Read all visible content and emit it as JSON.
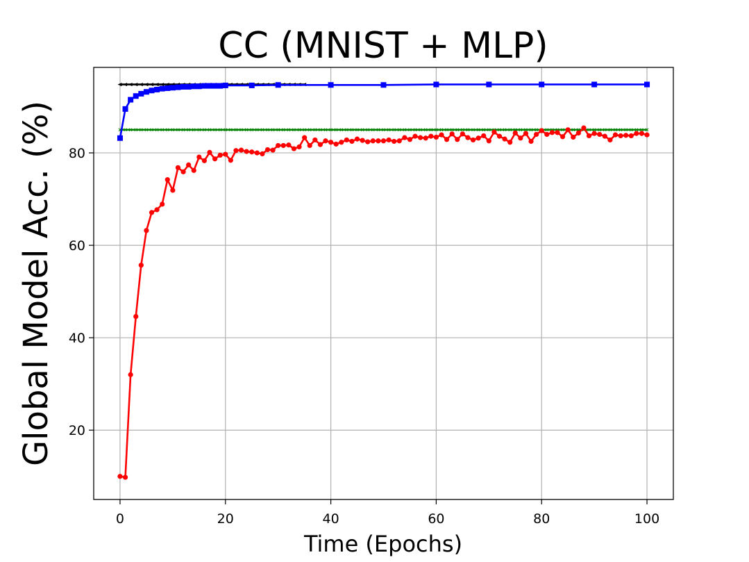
{
  "chart_data": {
    "type": "line",
    "title": "CC (MNIST + MLP)",
    "xlabel": "Time (Epochs)",
    "ylabel": "Global Model Acc. (%)",
    "xlim": [
      -5,
      105
    ],
    "ylim": [
      5,
      98.5
    ],
    "xticks": [
      0,
      20,
      40,
      60,
      80,
      100
    ],
    "yticks": [
      20,
      40,
      60,
      80
    ],
    "grid": true,
    "legend": null,
    "series": [
      {
        "color": "#000000",
        "marker": "triangle-left",
        "x": [
          0,
          1,
          2,
          3,
          4,
          5,
          6,
          7,
          8,
          9,
          10,
          11,
          12,
          13,
          14,
          15,
          16,
          17,
          18,
          19,
          20,
          21,
          22,
          23,
          24,
          25,
          26,
          27,
          28,
          29,
          30,
          31,
          32,
          33,
          34,
          35
        ],
        "values": [
          94.8,
          94.8,
          94.8,
          94.8,
          94.8,
          94.8,
          94.8,
          94.8,
          94.8,
          94.8,
          94.8,
          94.8,
          94.8,
          94.8,
          94.8,
          94.8,
          94.8,
          94.8,
          94.8,
          94.8,
          94.8,
          94.8,
          94.8,
          94.8,
          94.8,
          94.8,
          94.8,
          94.8,
          94.8,
          94.8,
          94.8,
          94.8,
          94.8,
          94.8,
          94.8,
          94.8
        ]
      },
      {
        "color": "#008000",
        "marker": "x",
        "x": [
          0,
          100
        ],
        "values": [
          85.0,
          85.0
        ]
      },
      {
        "color": "#0000ff",
        "marker": "square",
        "x": [
          0,
          1,
          2,
          3,
          4,
          5,
          6,
          7,
          8,
          9,
          10,
          11,
          12,
          13,
          14,
          15,
          16,
          17,
          18,
          19,
          20,
          25,
          30,
          40,
          50,
          60,
          70,
          80,
          90,
          100
        ],
        "values": [
          83.2,
          89.5,
          91.5,
          92.3,
          92.8,
          93.2,
          93.5,
          93.7,
          93.9,
          94.0,
          94.1,
          94.2,
          94.3,
          94.3,
          94.4,
          94.4,
          94.5,
          94.5,
          94.5,
          94.5,
          94.6,
          94.6,
          94.7,
          94.7,
          94.7,
          94.8,
          94.8,
          94.8,
          94.8,
          94.8
        ]
      },
      {
        "color": "#ff0000",
        "marker": "circle",
        "x": [
          0,
          1,
          2,
          3,
          4,
          5,
          6,
          7,
          8,
          9,
          10,
          11,
          12,
          13,
          14,
          15,
          16,
          17,
          18,
          19,
          20,
          21,
          22,
          23,
          24,
          25,
          26,
          27,
          28,
          29,
          30,
          31,
          32,
          33,
          34,
          35,
          36,
          37,
          38,
          39,
          40,
          41,
          42,
          43,
          44,
          45,
          46,
          47,
          48,
          49,
          50,
          51,
          52,
          53,
          54,
          55,
          56,
          57,
          58,
          59,
          60,
          61,
          62,
          63,
          64,
          65,
          66,
          67,
          68,
          69,
          70,
          71,
          72,
          73,
          74,
          75,
          76,
          77,
          78,
          79,
          80,
          81,
          82,
          83,
          84,
          85,
          86,
          87,
          88,
          89,
          90,
          91,
          92,
          93,
          94,
          95,
          96,
          97,
          98,
          99,
          100
        ],
        "values": [
          10.0,
          9.8,
          32.0,
          44.6,
          55.7,
          63.2,
          67.1,
          67.7,
          68.9,
          74.2,
          71.9,
          76.8,
          75.9,
          77.4,
          76.2,
          79.1,
          78.3,
          80.1,
          78.7,
          79.5,
          79.7,
          78.4,
          80.5,
          80.6,
          80.3,
          80.2,
          80.0,
          79.8,
          80.7,
          80.6,
          81.6,
          81.6,
          81.7,
          80.9,
          81.3,
          83.3,
          81.6,
          82.8,
          81.8,
          82.6,
          82.3,
          81.9,
          82.3,
          82.8,
          82.5,
          83.0,
          82.7,
          82.4,
          82.6,
          82.6,
          82.6,
          82.8,
          82.5,
          82.6,
          83.3,
          82.9,
          83.6,
          83.3,
          83.2,
          83.6,
          83.4,
          83.9,
          82.9,
          84.1,
          82.9,
          84.1,
          83.3,
          82.8,
          83.2,
          83.7,
          82.6,
          84.5,
          83.6,
          83.0,
          82.3,
          84.3,
          83.2,
          84.2,
          82.5,
          84.0,
          84.8,
          84.0,
          84.4,
          84.4,
          83.5,
          85.0,
          83.4,
          84.3,
          85.4,
          83.7,
          84.2,
          84.0,
          83.6,
          82.8,
          83.9,
          83.7,
          83.8,
          83.7,
          84.2,
          84.2,
          83.9
        ]
      }
    ]
  }
}
